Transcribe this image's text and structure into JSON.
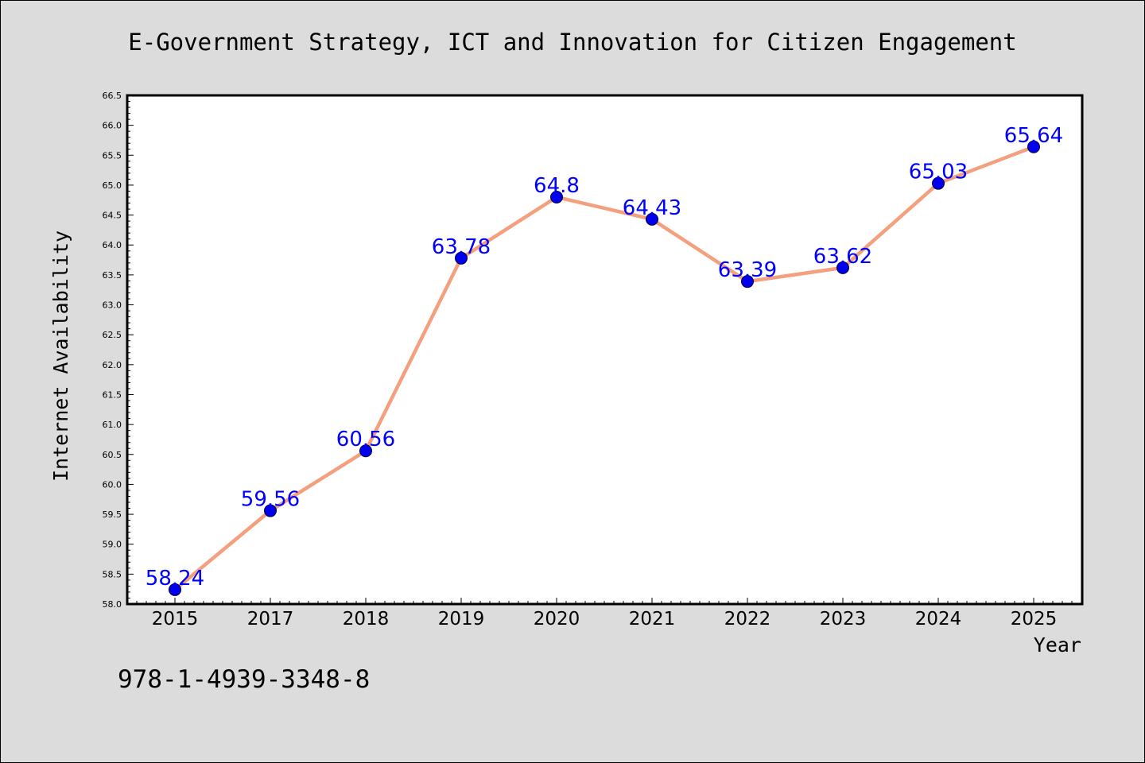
{
  "chart_data": {
    "type": "line",
    "title": "E-Government Strategy, ICT and Innovation for Citizen Engagement",
    "xlabel": "Year",
    "ylabel": "Internet Availability",
    "categories": [
      "2015",
      "2017",
      "2018",
      "2019",
      "2020",
      "2021",
      "2022",
      "2023",
      "2024",
      "2025"
    ],
    "series": [
      {
        "values": [
          58.24,
          59.56,
          60.56,
          63.78,
          64.8,
          64.43,
          63.39,
          63.62,
          65.03,
          65.64
        ],
        "labels": [
          "58.24",
          "59.56",
          "60.56",
          "63.78",
          "64.8",
          "64.43",
          "63.39",
          "63.62",
          "65.03",
          "65.64"
        ]
      }
    ],
    "ylim": [
      58.0,
      66.5
    ],
    "yticks": [
      "58.0",
      "58.5",
      "59.0",
      "59.5",
      "60.0",
      "60.5",
      "61.0",
      "61.5",
      "62.0",
      "62.5",
      "63.0",
      "63.5",
      "64.0",
      "64.5",
      "65.0",
      "65.5",
      "66.0",
      "66.5"
    ],
    "grid": false,
    "colors": {
      "line": "#f4a07e",
      "marker": "#0000ee",
      "marker_edge": "#000033",
      "label": "#0000ff",
      "background": "#dcdcdc",
      "plot_background": "#ffffff"
    }
  },
  "footer": {
    "isbn": "978-1-4939-3348-8"
  }
}
